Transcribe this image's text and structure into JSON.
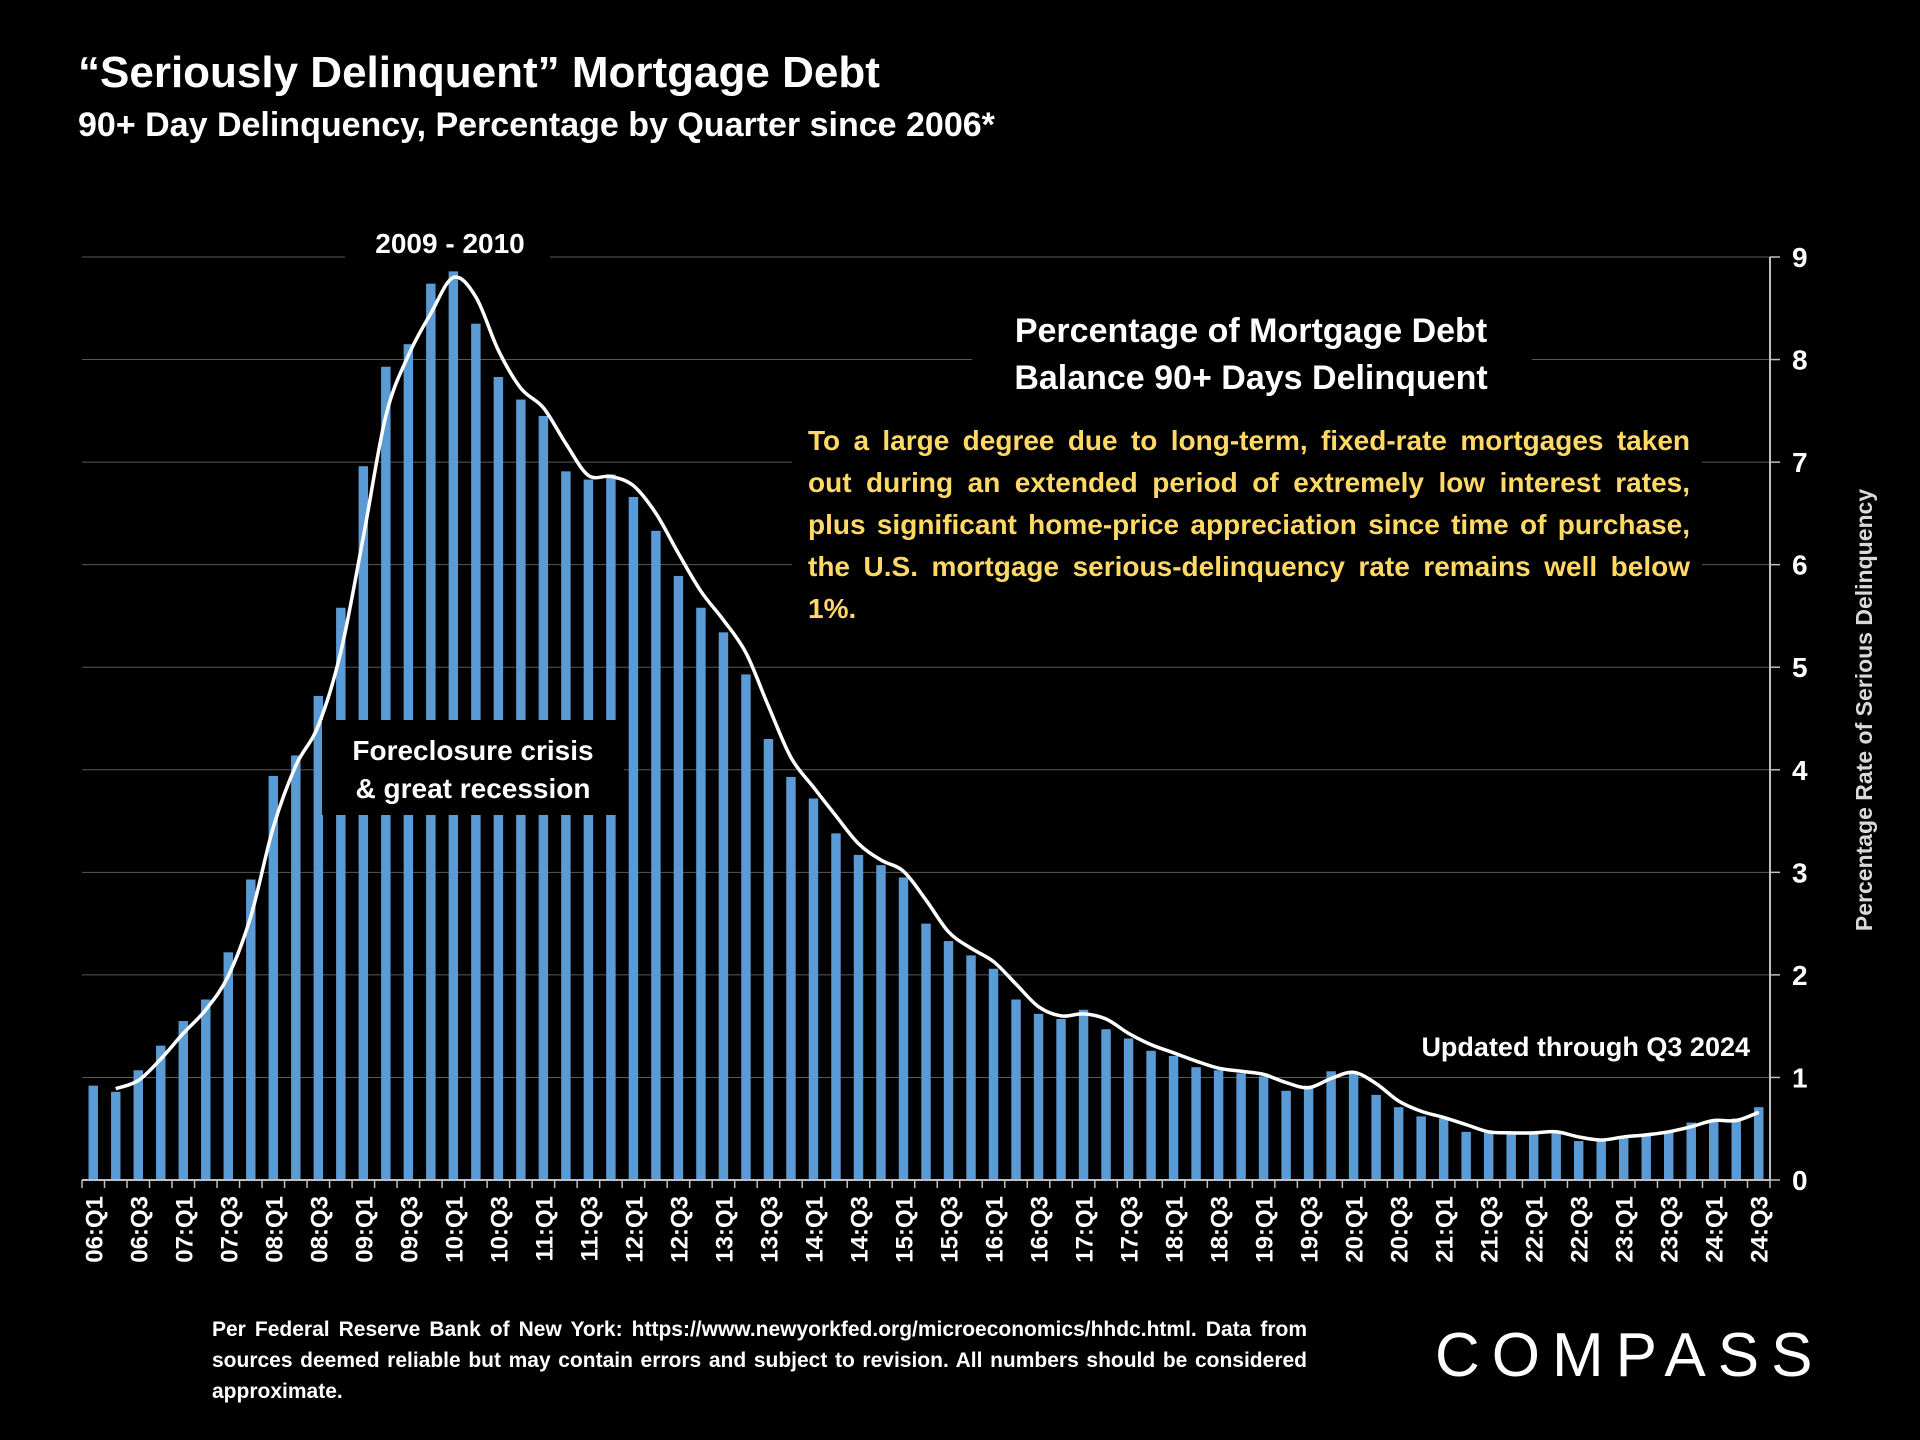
{
  "header": {
    "title": "“Seriously Delinquent” Mortgage Debt",
    "subtitle": "90+ Day Delinquency, Percentage by Quarter since 2006*"
  },
  "annotations": {
    "peak_label": "2009 - 2010",
    "chart_label_line1": "Percentage of Mortgage Debt",
    "chart_label_line2": "Balance 90+ Days Delinquent",
    "commentary": "To a large degree due to long-term, fixed-rate mortgages taken out during an extended period of extremely low interest rates, plus significant home-price appreciation since time of purchase, the U.S. mortgage serious-delinquency rate remains well below 1%.",
    "crisis_line1": "Foreclosure crisis",
    "crisis_line2": "& great recession",
    "updated": "Updated through Q3 2024"
  },
  "footer": {
    "source": "Per Federal Reserve Bank of New York: https://www.newyorkfed.org/microeconomics/hhdc.html. Data from sources deemed reliable but may contain errors and subject to revision. All numbers should be considered approximate.",
    "logo": "COMPASS"
  },
  "colors": {
    "bar": "#5b9bd5",
    "line": "#ffffff",
    "commentary": "#ffd966",
    "grid": "#595959"
  },
  "chart_data": {
    "type": "bar",
    "ylabel": "Percentage Rate of Serious Delinquency",
    "ylim": [
      0,
      9
    ],
    "yticks": [
      0,
      1,
      2,
      3,
      4,
      5,
      6,
      7,
      8,
      9
    ],
    "y_axis_side": "right",
    "categories": [
      "06:Q1",
      "06:Q2",
      "06:Q3",
      "06:Q4",
      "07:Q1",
      "07:Q2",
      "07:Q3",
      "07:Q4",
      "08:Q1",
      "08:Q2",
      "08:Q3",
      "08:Q4",
      "09:Q1",
      "09:Q2",
      "09:Q3",
      "09:Q4",
      "10:Q1",
      "10:Q2",
      "10:Q3",
      "10:Q4",
      "11:Q1",
      "11:Q2",
      "11:Q3",
      "11:Q4",
      "12:Q1",
      "12:Q2",
      "12:Q3",
      "12:Q4",
      "13:Q1",
      "13:Q2",
      "13:Q3",
      "13:Q4",
      "14:Q1",
      "14:Q2",
      "14:Q3",
      "14:Q4",
      "15:Q1",
      "15:Q2",
      "15:Q3",
      "15:Q4",
      "16:Q1",
      "16:Q2",
      "16:Q3",
      "16:Q4",
      "17:Q1",
      "17:Q2",
      "17:Q3",
      "17:Q4",
      "18:Q1",
      "18:Q2",
      "18:Q3",
      "18:Q4",
      "19:Q1",
      "19:Q2",
      "19:Q3",
      "19:Q4",
      "20:Q1",
      "20:Q2",
      "20:Q3",
      "20:Q4",
      "21:Q1",
      "21:Q2",
      "21:Q3",
      "21:Q4",
      "22:Q1",
      "22:Q2",
      "22:Q3",
      "22:Q4",
      "23:Q1",
      "23:Q2",
      "23:Q3",
      "23:Q4",
      "24:Q1",
      "24:Q2",
      "24:Q3"
    ],
    "visible_tick_labels": [
      "06:Q1",
      "06:Q3",
      "07:Q1",
      "07:Q3",
      "08:Q1",
      "08:Q3",
      "09:Q1",
      "09:Q3",
      "10:Q1",
      "10:Q3",
      "11:Q1",
      "11:Q3",
      "12:Q1",
      "12:Q3",
      "13:Q1",
      "13:Q3",
      "14:Q1",
      "14:Q3",
      "15:Q1",
      "15:Q3",
      "16:Q1",
      "16:Q3",
      "17:Q1",
      "17:Q3",
      "18:Q1",
      "18:Q3",
      "19:Q1",
      "19:Q3",
      "20:Q1",
      "20:Q3",
      "21:Q1",
      "21:Q3",
      "22:Q1",
      "22:Q3",
      "23:Q1",
      "23:Q3",
      "24:Q1",
      "24:Q3"
    ],
    "series": [
      {
        "type": "bar",
        "values": [
          0.92,
          0.86,
          1.07,
          1.31,
          1.55,
          1.76,
          2.22,
          2.93,
          3.94,
          4.14,
          4.72,
          5.58,
          6.96,
          7.93,
          8.15,
          8.74,
          8.86,
          8.35,
          7.83,
          7.61,
          7.45,
          6.91,
          6.83,
          6.88,
          6.66,
          6.33,
          5.89,
          5.58,
          5.34,
          4.93,
          4.3,
          3.93,
          3.72,
          3.38,
          3.17,
          3.07,
          2.95,
          2.5,
          2.33,
          2.19,
          2.06,
          1.76,
          1.62,
          1.57,
          1.66,
          1.47,
          1.38,
          1.26,
          1.21,
          1.1,
          1.07,
          1.04,
          1.01,
          0.87,
          0.92,
          1.06,
          1.04,
          0.83,
          0.71,
          0.62,
          0.6,
          0.47,
          0.46,
          0.46,
          0.46,
          0.46,
          0.38,
          0.4,
          0.43,
          0.45,
          0.48,
          0.56,
          0.59,
          0.6,
          0.71
        ]
      },
      {
        "type": "line",
        "values": [
          null,
          0.89,
          0.97,
          1.18,
          1.43,
          1.66,
          1.99,
          2.57,
          3.44,
          4.04,
          4.43,
          5.15,
          6.27,
          7.45,
          8.04,
          8.45,
          8.8,
          8.61,
          8.09,
          7.72,
          7.53,
          7.18,
          6.87,
          6.86,
          6.77,
          6.5,
          6.11,
          5.74,
          5.46,
          5.14,
          4.62,
          4.12,
          3.83,
          3.55,
          3.28,
          3.12,
          3.01,
          2.73,
          2.42,
          2.26,
          2.13,
          1.91,
          1.69,
          1.6,
          1.62,
          1.57,
          1.43,
          1.32,
          1.24,
          1.16,
          1.09,
          1.06,
          1.03,
          0.95,
          0.9,
          0.99,
          1.05,
          0.94,
          0.77,
          0.67,
          0.61,
          0.54,
          0.47,
          0.46,
          0.46,
          0.47,
          0.42,
          0.39,
          0.42,
          0.44,
          0.47,
          0.52,
          0.58,
          0.58,
          0.66
        ]
      }
    ]
  }
}
